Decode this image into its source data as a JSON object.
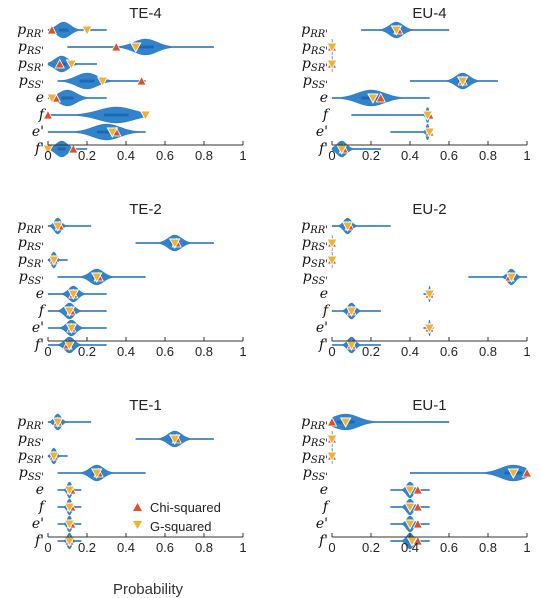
{
  "chart_data": {
    "type": "violin",
    "panel_order": [
      "TE-4",
      "EU-4",
      "TE-2",
      "EU-2",
      "TE-1",
      "EU-1"
    ],
    "row_labels": [
      "p_RR'",
      "p_RS'",
      "p_SR'",
      "p_SS'",
      "e",
      "f",
      "e'",
      "f'"
    ],
    "xlabel": "Probability",
    "xlim": [
      0,
      1
    ],
    "xticks": [
      0,
      0.2,
      0.4,
      0.6,
      0.8,
      1
    ],
    "xtick_labels": [
      "0",
      "0.2",
      "0.4",
      "0.6",
      "0.8",
      "1"
    ],
    "legend": {
      "entries": [
        {
          "name": "Chi-squared",
          "marker": "triangle-up",
          "color": "#d9532b"
        },
        {
          "name": "G-squared",
          "marker": "triangle-down",
          "color": "#f2b134"
        }
      ],
      "placement": "inside TE-1, bottom-right"
    },
    "colors": {
      "violin": "#1f78c8",
      "violin_dark": "#12579b",
      "chi": "#d9532b",
      "g": "#f2b134"
    },
    "panels": [
      {
        "title": "TE-4",
        "rows": [
          {
            "label": "p_RR'",
            "center": 0.08,
            "spread": 0.035,
            "range": [
              0.0,
              0.3
            ],
            "chi": 0.02,
            "g": 0.2
          },
          {
            "label": "p_RS'",
            "center": 0.5,
            "spread": 0.06,
            "range": [
              0.1,
              0.85
            ],
            "chi": 0.35,
            "g": 0.45
          },
          {
            "label": "p_SR'",
            "center": 0.07,
            "spread": 0.035,
            "range": [
              0.0,
              0.25
            ],
            "chi": 0.06,
            "g": 0.12
          },
          {
            "label": "p_SS'",
            "center": 0.2,
            "spread": 0.055,
            "range": [
              0.05,
              0.5
            ],
            "chi": 0.48,
            "g": 0.28
          },
          {
            "label": "e",
            "center": 0.1,
            "spread": 0.045,
            "range": [
              0.0,
              0.3
            ],
            "chi": 0.04,
            "g": 0.02
          },
          {
            "label": "f",
            "center": 0.35,
            "spread": 0.09,
            "range": [
              0.0,
              0.5
            ],
            "chi": 0.0,
            "g": 0.5
          },
          {
            "label": "e'",
            "center": 0.3,
            "spread": 0.07,
            "range": [
              0.0,
              0.5
            ],
            "chi": 0.35,
            "g": 0.33
          },
          {
            "label": "f'",
            "center": 0.07,
            "spread": 0.03,
            "range": [
              0.0,
              0.2
            ],
            "chi": 0.13,
            "g": 0.0
          }
        ]
      },
      {
        "title": "EU-4",
        "rows": [
          {
            "label": "p_RR'",
            "center": 0.33,
            "spread": 0.035,
            "range": [
              0.15,
              0.6
            ],
            "chi": 0.34,
            "g": 0.33
          },
          {
            "label": "p_RS'",
            "center": 0.0,
            "spread": 0.003,
            "range": [
              0.0,
              0.01
            ],
            "chi": 0.0,
            "g": 0.0
          },
          {
            "label": "p_SR'",
            "center": 0.0,
            "spread": 0.003,
            "range": [
              0.0,
              0.01
            ],
            "chi": 0.0,
            "g": 0.0
          },
          {
            "label": "p_SS'",
            "center": 0.67,
            "spread": 0.035,
            "range": [
              0.4,
              0.85
            ],
            "chi": 0.67,
            "g": 0.67
          },
          {
            "label": "e",
            "center": 0.2,
            "spread": 0.07,
            "range": [
              0.0,
              0.5
            ],
            "chi": 0.25,
            "g": 0.21
          },
          {
            "label": "f",
            "center": 0.49,
            "spread": 0.008,
            "range": [
              0.1,
              0.5
            ],
            "chi": 0.5,
            "g": 0.49
          },
          {
            "label": "e'",
            "center": 0.49,
            "spread": 0.008,
            "range": [
              0.3,
              0.5
            ],
            "chi": 0.5,
            "g": 0.5
          },
          {
            "label": "f'",
            "center": 0.05,
            "spread": 0.025,
            "range": [
              0.0,
              0.25
            ],
            "chi": 0.06,
            "g": 0.05
          }
        ]
      },
      {
        "title": "TE-2",
        "rows": [
          {
            "label": "p_RR'",
            "center": 0.05,
            "spread": 0.018,
            "range": [
              0.0,
              0.22
            ],
            "chi": 0.06,
            "g": 0.05
          },
          {
            "label": "p_RS'",
            "center": 0.65,
            "spread": 0.035,
            "range": [
              0.45,
              0.85
            ],
            "chi": 0.66,
            "g": 0.65
          },
          {
            "label": "p_SR'",
            "center": 0.03,
            "spread": 0.013,
            "range": [
              0.0,
              0.1
            ],
            "chi": 0.03,
            "g": 0.03
          },
          {
            "label": "p_SS'",
            "center": 0.25,
            "spread": 0.035,
            "range": [
              0.05,
              0.5
            ],
            "chi": 0.26,
            "g": 0.25
          },
          {
            "label": "e",
            "center": 0.13,
            "spread": 0.025,
            "range": [
              0.0,
              0.3
            ],
            "chi": 0.13,
            "g": 0.13
          },
          {
            "label": "f",
            "center": 0.11,
            "spread": 0.025,
            "range": [
              0.0,
              0.3
            ],
            "chi": 0.12,
            "g": 0.11
          },
          {
            "label": "e'",
            "center": 0.12,
            "spread": 0.025,
            "range": [
              0.0,
              0.3
            ],
            "chi": 0.12,
            "g": 0.12
          },
          {
            "label": "f'",
            "center": 0.11,
            "spread": 0.025,
            "range": [
              0.0,
              0.3
            ],
            "chi": 0.1,
            "g": 0.11
          }
        ]
      },
      {
        "title": "EU-2",
        "rows": [
          {
            "label": "p_RR'",
            "center": 0.08,
            "spread": 0.02,
            "range": [
              0.0,
              0.3
            ],
            "chi": 0.09,
            "g": 0.08
          },
          {
            "label": "p_RS'",
            "center": 0.0,
            "spread": 0.003,
            "range": [
              0.0,
              0.01
            ],
            "chi": 0.0,
            "g": 0.0
          },
          {
            "label": "p_SR'",
            "center": 0.0,
            "spread": 0.003,
            "range": [
              0.0,
              0.01
            ],
            "chi": 0.0,
            "g": 0.0
          },
          {
            "label": "p_SS'",
            "center": 0.92,
            "spread": 0.02,
            "range": [
              0.7,
              1.0
            ],
            "chi": 0.91,
            "g": 0.92
          },
          {
            "label": "e",
            "center": 0.5,
            "spread": 0.004,
            "range": [
              0.47,
              0.52
            ],
            "chi": 0.5,
            "g": 0.5
          },
          {
            "label": "f",
            "center": 0.1,
            "spread": 0.02,
            "range": [
              0.0,
              0.25
            ],
            "chi": 0.1,
            "g": 0.1
          },
          {
            "label": "e'",
            "center": 0.5,
            "spread": 0.004,
            "range": [
              0.47,
              0.52
            ],
            "chi": 0.5,
            "g": 0.5
          },
          {
            "label": "f'",
            "center": 0.1,
            "spread": 0.02,
            "range": [
              0.0,
              0.25
            ],
            "chi": 0.1,
            "g": 0.1
          }
        ]
      },
      {
        "title": "TE-1",
        "rows": [
          {
            "label": "p_RR'",
            "center": 0.05,
            "spread": 0.018,
            "range": [
              0.0,
              0.22
            ],
            "chi": 0.05,
            "g": 0.05
          },
          {
            "label": "p_RS'",
            "center": 0.65,
            "spread": 0.035,
            "range": [
              0.45,
              0.85
            ],
            "chi": 0.66,
            "g": 0.65
          },
          {
            "label": "p_SR'",
            "center": 0.03,
            "spread": 0.013,
            "range": [
              0.0,
              0.1
            ],
            "chi": 0.03,
            "g": 0.03
          },
          {
            "label": "p_SS'",
            "center": 0.25,
            "spread": 0.035,
            "range": [
              0.05,
              0.5
            ],
            "chi": 0.26,
            "g": 0.25
          },
          {
            "label": "e",
            "center": 0.11,
            "spread": 0.012,
            "range": [
              0.05,
              0.17
            ],
            "chi": 0.12,
            "g": 0.11
          },
          {
            "label": "f",
            "center": 0.11,
            "spread": 0.012,
            "range": [
              0.05,
              0.17
            ],
            "chi": 0.12,
            "g": 0.11
          },
          {
            "label": "e'",
            "center": 0.11,
            "spread": 0.012,
            "range": [
              0.05,
              0.17
            ],
            "chi": 0.12,
            "g": 0.11
          },
          {
            "label": "f'",
            "center": 0.11,
            "spread": 0.012,
            "range": [
              0.05,
              0.17
            ],
            "chi": 0.11,
            "g": 0.11
          }
        ]
      },
      {
        "title": "EU-1",
        "rows": [
          {
            "label": "p_RR'",
            "center": 0.07,
            "spread": 0.065,
            "range": [
              0.0,
              0.6
            ],
            "chi": 0.0,
            "g": 0.07
          },
          {
            "label": "p_RS'",
            "center": 0.0,
            "spread": 0.003,
            "range": [
              0.0,
              0.01
            ],
            "chi": 0.0,
            "g": 0.0
          },
          {
            "label": "p_SR'",
            "center": 0.0,
            "spread": 0.003,
            "range": [
              0.0,
              0.01
            ],
            "chi": 0.0,
            "g": 0.0
          },
          {
            "label": "p_SS'",
            "center": 0.93,
            "spread": 0.065,
            "range": [
              0.4,
              1.0
            ],
            "chi": 1.0,
            "g": 0.93
          },
          {
            "label": "e",
            "center": 0.4,
            "spread": 0.018,
            "range": [
              0.3,
              0.5
            ],
            "chi": 0.44,
            "g": 0.4
          },
          {
            "label": "f",
            "center": 0.4,
            "spread": 0.018,
            "range": [
              0.3,
              0.5
            ],
            "chi": 0.44,
            "g": 0.4
          },
          {
            "label": "e'",
            "center": 0.4,
            "spread": 0.018,
            "range": [
              0.3,
              0.5
            ],
            "chi": 0.44,
            "g": 0.4
          },
          {
            "label": "f'",
            "center": 0.4,
            "spread": 0.018,
            "range": [
              0.3,
              0.5
            ],
            "chi": 0.44,
            "g": 0.41
          }
        ]
      }
    ]
  }
}
